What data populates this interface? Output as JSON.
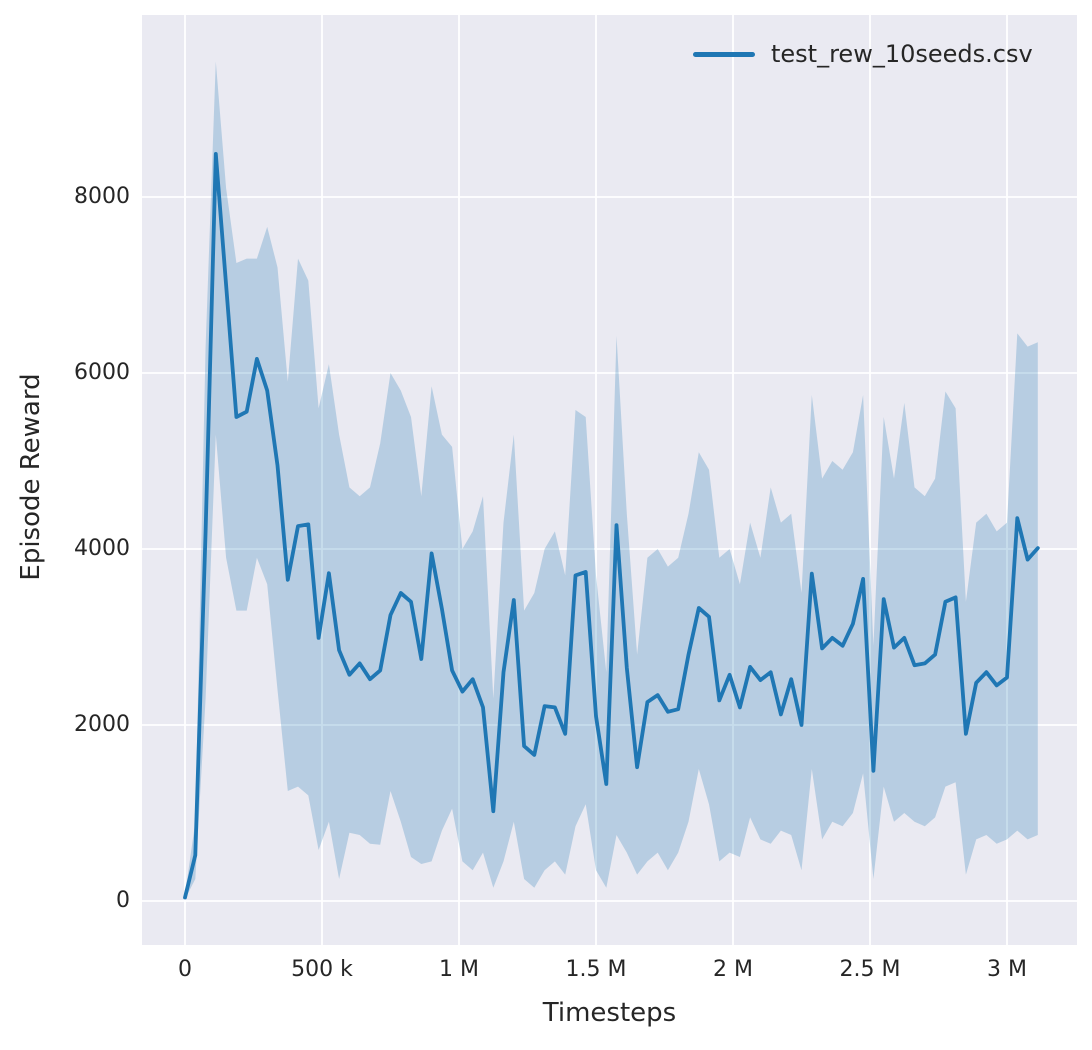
{
  "chart_data": {
    "type": "line",
    "title": "",
    "xlabel": "Timesteps",
    "ylabel": "Episode Reward",
    "legend": [
      "test_rew_10seeds.csv"
    ],
    "legend_position": "upper right",
    "grid": true,
    "style": "seaborn-darkgrid",
    "colors": {
      "line": "#1f77b4",
      "band": "#1f77b4",
      "band_opacity": 0.25,
      "plot_background": "#eaeaf2",
      "gridline": "#ffffff",
      "text": "#262626",
      "figure_background": "#ffffff"
    },
    "xlim": [
      -146000,
      3256000
    ],
    "ylim": [
      -520,
      10050
    ],
    "xticks": {
      "values": [
        0,
        500000,
        1000000,
        1500000,
        2000000,
        2500000,
        3000000
      ],
      "labels": [
        "0",
        "500 k",
        "1 M",
        "1.5 M",
        "2 M",
        "2.5 M",
        "3 M"
      ]
    },
    "yticks": {
      "values": [
        0,
        2000,
        4000,
        6000,
        8000
      ],
      "labels": [
        "0",
        "2000",
        "4000",
        "6000",
        "8000"
      ]
    },
    "x": [
      0,
      37500,
      75000,
      112500,
      150000,
      187500,
      225000,
      262500,
      300000,
      337500,
      375000,
      412500,
      450000,
      487500,
      525000,
      562500,
      600000,
      637500,
      675000,
      712500,
      750000,
      787500,
      825000,
      862500,
      900000,
      937500,
      975000,
      1012500,
      1050000,
      1087500,
      1125000,
      1162500,
      1200000,
      1237500,
      1275000,
      1312500,
      1350000,
      1387500,
      1425000,
      1462500,
      1500000,
      1537500,
      1575000,
      1612500,
      1650000,
      1687500,
      1725000,
      1762500,
      1800000,
      1837500,
      1875000,
      1912500,
      1950000,
      1987500,
      2025000,
      2062500,
      2100000,
      2137500,
      2175000,
      2212500,
      2250000,
      2287500,
      2325000,
      2362500,
      2400000,
      2437500,
      2475000,
      2512500,
      2550000,
      2587500,
      2625000,
      2662500,
      2700000,
      2737500,
      2775000,
      2812500,
      2850000,
      2887500,
      2925000,
      2962500,
      3000000,
      3037500,
      3075000,
      3112500
    ],
    "series": [
      {
        "name": "test_rew_10seeds.csv",
        "mean": [
          40,
          520,
          4200,
          8490,
          7000,
          5500,
          5560,
          6160,
          5800,
          4950,
          3650,
          4260,
          4280,
          2990,
          3725,
          2850,
          2570,
          2700,
          2520,
          2620,
          3250,
          3500,
          3400,
          2750,
          3950,
          3320,
          2620,
          2380,
          2520,
          2200,
          1020,
          2600,
          3420,
          1760,
          1660,
          2215,
          2200,
          1900,
          3700,
          3740,
          2100,
          1330,
          4270,
          2650,
          1520,
          2260,
          2340,
          2150,
          2180,
          2800,
          3330,
          3230,
          2280,
          2570,
          2200,
          2660,
          2510,
          2600,
          2120,
          2520,
          2000,
          3720,
          2870,
          2990,
          2900,
          3150,
          3660,
          1480,
          3430,
          2880,
          2990,
          2680,
          2700,
          2800,
          3400,
          3450,
          1900,
          2480,
          2600,
          2450,
          2540,
          4350,
          3880,
          4010
        ],
        "band_high": [
          70,
          900,
          6300,
          9540,
          8100,
          7250,
          7300,
          7300,
          7660,
          7200,
          5900,
          7300,
          7050,
          5600,
          6100,
          5300,
          4700,
          4600,
          4700,
          5200,
          6000,
          5800,
          5500,
          4600,
          5850,
          5300,
          5160,
          4000,
          4200,
          4600,
          2300,
          4300,
          5300,
          3300,
          3500,
          4000,
          4200,
          3700,
          5580,
          5500,
          3700,
          2600,
          6420,
          4400,
          2800,
          3900,
          4000,
          3800,
          3900,
          4400,
          5100,
          4900,
          3900,
          4000,
          3600,
          4300,
          3900,
          4700,
          4300,
          4400,
          3500,
          5750,
          4800,
          5000,
          4900,
          5100,
          5750,
          2900,
          5500,
          4800,
          5660,
          4700,
          4600,
          4800,
          5790,
          5600,
          3400,
          4300,
          4400,
          4200,
          4300,
          6450,
          6300,
          6350
        ],
        "band_low": [
          20,
          250,
          2300,
          5300,
          3900,
          3300,
          3300,
          3900,
          3600,
          2400,
          1250,
          1300,
          1200,
          580,
          900,
          250,
          775,
          750,
          650,
          640,
          1250,
          900,
          500,
          420,
          450,
          800,
          1050,
          450,
          350,
          550,
          150,
          450,
          900,
          250,
          150,
          350,
          450,
          300,
          850,
          1100,
          350,
          150,
          750,
          550,
          300,
          450,
          550,
          350,
          550,
          900,
          1500,
          1100,
          450,
          550,
          500,
          950,
          700,
          650,
          800,
          750,
          350,
          1500,
          700,
          900,
          850,
          1000,
          1450,
          250,
          1300,
          900,
          1000,
          900,
          850,
          950,
          1300,
          1350,
          300,
          700,
          750,
          650,
          700,
          800,
          700,
          750
        ]
      }
    ]
  }
}
